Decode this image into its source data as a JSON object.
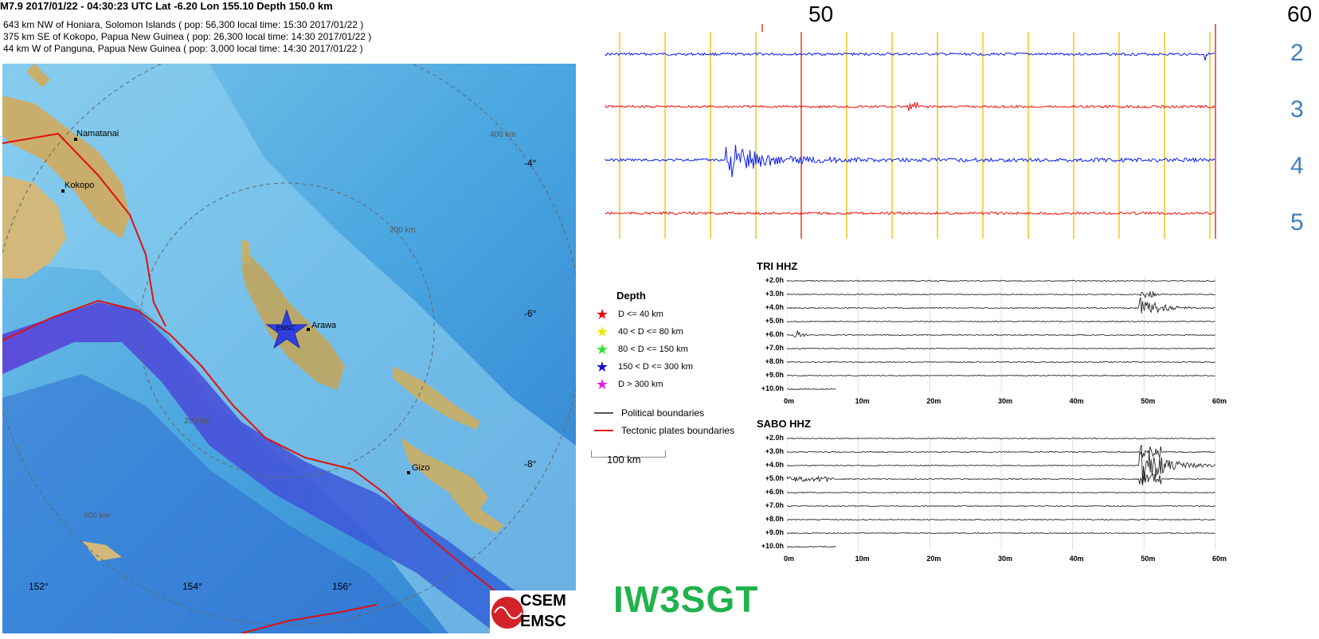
{
  "header": {
    "title": "M7.9  2017/01/22 - 04:30:23 UTC    Lat -6.20  Lon 155.10    Depth 150.0 km",
    "locations": [
      "643 km NW of Honiara, Solomon Islands  (  pop: 56,300   local time: 15:30 2017/01/22 )",
      "375 km SE of Kokopo, Papua New Guinea  (  pop: 26,300   local time: 14:30 2017/01/22 )",
      "44 km W of Panguna, Papua New Guinea  (  pop: 3,000   local time: 14:30 2017/01/22 )"
    ]
  },
  "map": {
    "places": [
      {
        "id": "namatanai",
        "label": "Namatanai"
      },
      {
        "id": "kokopo",
        "label": "Kokopo"
      },
      {
        "id": "arawa",
        "label": "Arawa"
      },
      {
        "id": "gizo",
        "label": "Gizo"
      }
    ],
    "epicenter_label": "EMSC",
    "lat_ticks": [
      "-4°",
      "-6°",
      "-8°"
    ],
    "lon_ticks": [
      "152°",
      "154°",
      "156°"
    ],
    "rings": [
      "400 km",
      "200 km",
      "200 km",
      "400 km"
    ]
  },
  "top_seismogram": {
    "minute_labels": [
      "50",
      "60"
    ],
    "trace_labels": [
      "2",
      "3",
      "4",
      "5"
    ],
    "colors": {
      "blue": "#0b1ee8",
      "red": "#ee1111",
      "grid": "#f5c518",
      "marker": "#e83a1a",
      "label": "#3f7fbf"
    }
  },
  "legend": {
    "title": "Depth",
    "items": [
      {
        "label": "D <= 40 km",
        "color": "#e01010"
      },
      {
        "label": "40 < D <= 80 km",
        "color": "#f2e60a"
      },
      {
        "label": "80 < D <= 150 km",
        "color": "#2ee62e"
      },
      {
        "label": "150 < D <= 300 km",
        "color": "#1010cc"
      },
      {
        "label": "D > 300 km",
        "color": "#e020e0"
      }
    ],
    "lines": [
      {
        "label": "Political boundaries",
        "color": "#555555"
      },
      {
        "label": "Tectonic plates boundaries",
        "color": "#e01010"
      }
    ],
    "scale_label": "100 km"
  },
  "helicorders": [
    {
      "station": "TRI HHZ",
      "row_labels": [
        "+2.0h",
        "+3.0h",
        "+4.0h",
        "+5.0h",
        "+6.0h",
        "+7.0h",
        "+8.0h",
        "+9.0h",
        "+10.0h"
      ],
      "x_labels": [
        "0m",
        "10m",
        "20m",
        "30m",
        "40m",
        "50m",
        "60m"
      ]
    },
    {
      "station": "SABO HHZ",
      "row_labels": [
        "+2.0h",
        "+3.0h",
        "+4.0h",
        "+5.0h",
        "+6.0h",
        "+7.0h",
        "+8.0h",
        "+9.0h",
        "+10.0h"
      ],
      "x_labels": [
        "0m",
        "10m",
        "20m",
        "30m",
        "40m",
        "50m",
        "60m"
      ]
    }
  ],
  "callsign": "IW3SGT",
  "logo": {
    "line1": "CSEM",
    "line2": "EMSC"
  }
}
